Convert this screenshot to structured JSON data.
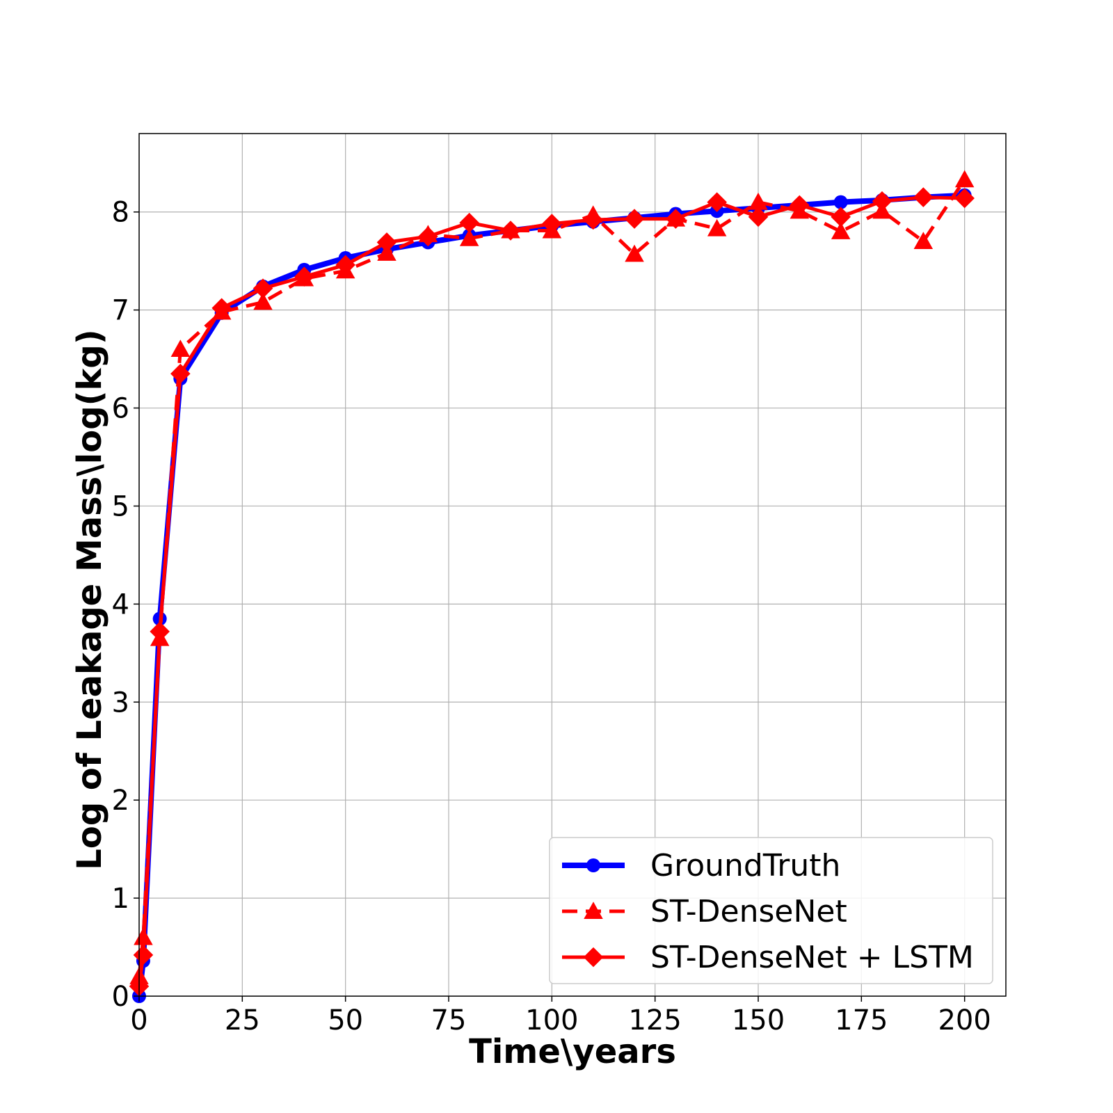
{
  "chart_data": {
    "type": "line",
    "xlabel": "Time\\years",
    "ylabel": "Log of Leakage Mass\\log(kg)",
    "xlim": [
      0,
      210
    ],
    "ylim": [
      0,
      8.8
    ],
    "xticks": [
      0,
      25,
      50,
      75,
      100,
      125,
      150,
      175,
      200
    ],
    "yticks": [
      0,
      1,
      2,
      3,
      4,
      5,
      6,
      7,
      8
    ],
    "grid": true,
    "legend_position": "lower-right",
    "series": [
      {
        "name": "GroundTruth",
        "color": "#0000ff",
        "line": "solid",
        "marker": "circle",
        "x": [
          0,
          1,
          5,
          10,
          20,
          30,
          40,
          50,
          60,
          70,
          80,
          90,
          100,
          110,
          120,
          130,
          140,
          150,
          160,
          170,
          180,
          190,
          200
        ],
        "y": [
          0.0,
          0.36,
          3.85,
          6.3,
          6.97,
          7.24,
          7.41,
          7.53,
          7.62,
          7.69,
          7.76,
          7.81,
          7.86,
          7.9,
          7.94,
          7.98,
          8.01,
          8.04,
          8.07,
          8.1,
          8.12,
          8.15,
          8.17
        ]
      },
      {
        "name": "ST-DenseNet",
        "color": "#ff0000",
        "line": "dashed",
        "marker": "triangle",
        "x": [
          0,
          1,
          5,
          10,
          20,
          30,
          40,
          50,
          60,
          70,
          80,
          90,
          100,
          110,
          120,
          130,
          140,
          150,
          160,
          170,
          180,
          190,
          200
        ],
        "y": [
          0.2,
          0.6,
          3.65,
          6.6,
          6.98,
          7.08,
          7.32,
          7.4,
          7.58,
          7.77,
          7.73,
          7.81,
          7.81,
          7.97,
          7.57,
          7.93,
          7.83,
          8.1,
          8.01,
          7.8,
          8.01,
          7.7,
          8.33
        ]
      },
      {
        "name": "ST-DenseNet + LSTM",
        "color": "#ff0000",
        "line": "solid",
        "marker": "diamond",
        "x": [
          0,
          1,
          5,
          10,
          20,
          30,
          40,
          50,
          60,
          70,
          80,
          90,
          100,
          110,
          120,
          130,
          140,
          150,
          160,
          170,
          180,
          190,
          200
        ],
        "y": [
          0.1,
          0.42,
          3.72,
          6.35,
          7.02,
          7.22,
          7.34,
          7.46,
          7.69,
          7.75,
          7.89,
          7.81,
          7.88,
          7.92,
          7.93,
          7.93,
          8.1,
          7.95,
          8.07,
          7.95,
          8.11,
          8.15,
          8.14
        ]
      }
    ]
  }
}
